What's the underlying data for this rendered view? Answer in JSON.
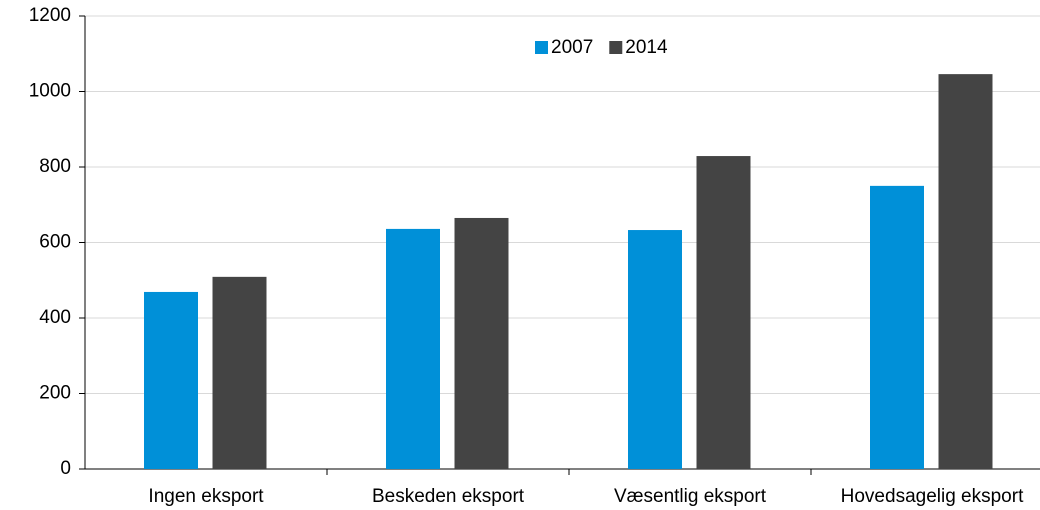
{
  "chart_data": {
    "type": "bar",
    "categories": [
      "Ingen eksport",
      "Beskeden eksport",
      "Væsentlig eksport",
      "Hovedsagelig eksport"
    ],
    "series": [
      {
        "name": "2007",
        "color": "#0090d8",
        "values": [
          469,
          636,
          633,
          750
        ]
      },
      {
        "name": "2014",
        "color": "#444444",
        "values": [
          509,
          665,
          829,
          1046
        ]
      }
    ],
    "ylim": [
      0,
      1200
    ],
    "yticks": [
      0,
      200,
      400,
      600,
      800,
      1000,
      1200
    ],
    "grid": true,
    "legend": "top"
  }
}
